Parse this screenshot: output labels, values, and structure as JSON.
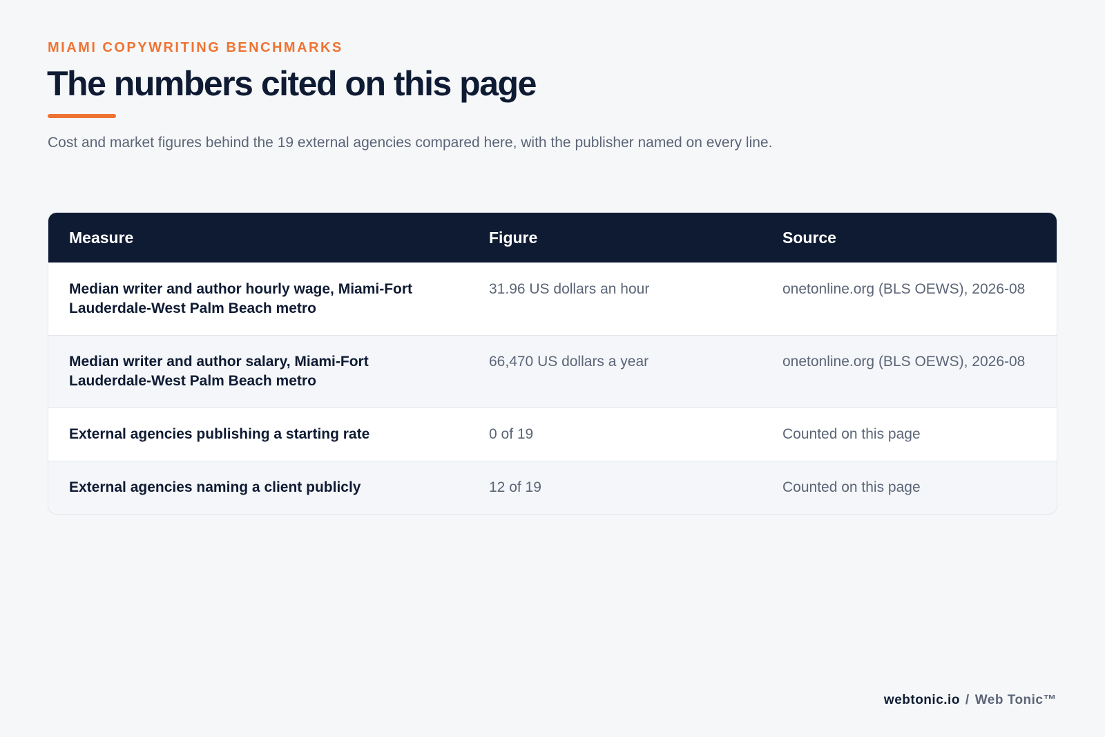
{
  "header": {
    "eyebrow": "MIAMI COPYWRITING BENCHMARKS",
    "title": "The numbers cited on this page",
    "subtitle": "Cost and market figures behind the 19 external agencies compared here, with the publisher named on every line."
  },
  "table": {
    "columns": [
      "Measure",
      "Figure",
      "Source"
    ],
    "rows": [
      [
        "Median writer and author hourly wage, Miami-Fort Lauderdale-West Palm Beach metro",
        "31.96 US dollars an hour",
        "onetonline.org (BLS OEWS), 2026-08"
      ],
      [
        "Median writer and author salary, Miami-Fort Lauderdale-West Palm Beach metro",
        "66,470 US dollars a year",
        "onetonline.org (BLS OEWS), 2026-08"
      ],
      [
        "External agencies publishing a starting rate",
        "0 of 19",
        "Counted on this page"
      ],
      [
        "External agencies naming a client publicly",
        "12 of 19",
        "Counted on this page"
      ]
    ]
  },
  "footer": {
    "domain": "webtonic.io",
    "separator": "/",
    "brand": "Web Tonic™"
  }
}
